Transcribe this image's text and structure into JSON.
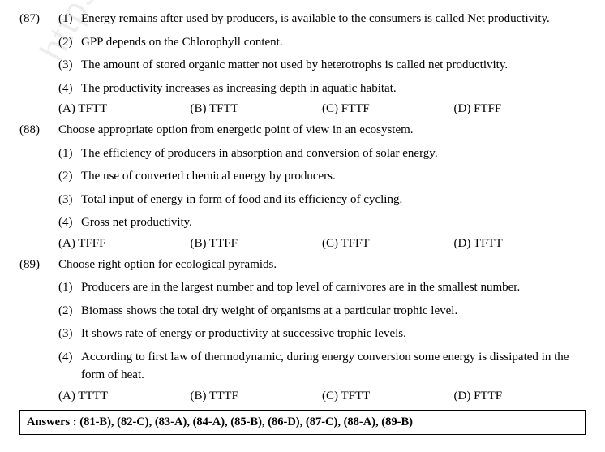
{
  "watermark": "https://www.stu",
  "questions": [
    {
      "num": "(87)",
      "stem_part": "",
      "statements": [
        {
          "n": "(1)",
          "t": "Energy remains after used by producers, is available to the consumers is called Net productivity."
        },
        {
          "n": "(2)",
          "t": "GPP depends on the Chlorophyll content."
        },
        {
          "n": "(3)",
          "t": "The amount of stored organic matter not used by heterotrophs is called net productivity."
        },
        {
          "n": "(4)",
          "t": "The productivity increases as increasing depth in aquatic habitat."
        }
      ],
      "options": [
        {
          "l": "(A) TFTT"
        },
        {
          "l": "(B) TFTT"
        },
        {
          "l": "(C) FTTF"
        },
        {
          "l": "(D) FTFF"
        }
      ]
    },
    {
      "num": "(88)",
      "stem_part": "Choose appropriate option from energetic point of view in an ecosystem.",
      "statements": [
        {
          "n": "(1)",
          "t": "The efficiency of producers in absorption and conversion of solar energy."
        },
        {
          "n": "(2)",
          "t": "The use of converted chemical energy by producers."
        },
        {
          "n": "(3)",
          "t": "Total input of energy in form of food and its efficiency of cycling."
        },
        {
          "n": "(4)",
          "t": "Gross net productivity."
        }
      ],
      "options": [
        {
          "l": "(A) TFFF"
        },
        {
          "l": "(B) TTFF"
        },
        {
          "l": "(C) TFFT"
        },
        {
          "l": "(D) TFTT"
        }
      ]
    },
    {
      "num": "(89)",
      "stem_part": "Choose right option for ecological pyramids.",
      "statements": [
        {
          "n": "(1)",
          "t": "Producers are in the largest number and top level of carnivores are in the smallest number."
        },
        {
          "n": "(2)",
          "t": "Biomass shows the total dry weight of organisms at a particular trophic level."
        },
        {
          "n": "(3)",
          "t": "It shows rate of energy or productivity at successive trophic levels."
        },
        {
          "n": "(4)",
          "t": "According to first law of thermodynamic, during energy conversion some energy is dissipated in the form of heat."
        }
      ],
      "options": [
        {
          "l": "(A) TTTT"
        },
        {
          "l": "(B) TTTF"
        },
        {
          "l": "(C) TFTT"
        },
        {
          "l": "(D) FTTF"
        }
      ]
    }
  ],
  "answers": "Answers : (81-B), (82-C), (83-A), (84-A), (85-B), (86-D), (87-C), (88-A), (89-B)"
}
